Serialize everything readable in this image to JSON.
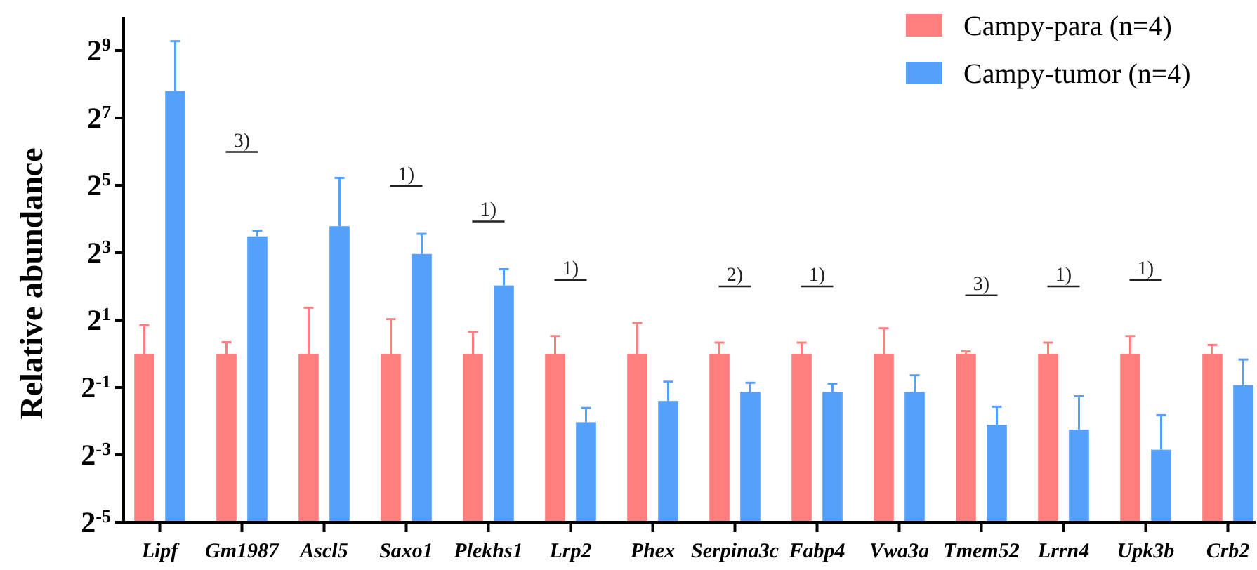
{
  "chart_data": {
    "type": "bar",
    "ylabel": "Relative abundance",
    "log": "y",
    "legend": "top right",
    "categories": [
      "Lipf",
      "Gm1987",
      "Ascl5",
      "Saxo1",
      "Plekhs1",
      "Lrp2",
      "Phex",
      "Serpina3c",
      "Fabp4",
      "Vwa3a",
      "Tmem52",
      "Lrrn4",
      "Upk3b",
      "Crb2"
    ],
    "ylim": [
      0.03125,
      1024
    ],
    "yticks": [
      {
        "value": 0.03125,
        "label": "2$^{-5}$"
      },
      {
        "value": 0.125,
        "label": "2$^{-3}$"
      },
      {
        "value": 0.5,
        "label": "2$^{-1}$"
      },
      {
        "value": 2,
        "label": "2$^{1}$"
      },
      {
        "value": 8,
        "label": "2$^{3}$"
      },
      {
        "value": 32,
        "label": "2$^{5}$"
      },
      {
        "value": 128,
        "label": "2$^{7}$"
      },
      {
        "value": 512,
        "label": "2$^{9}$"
      }
    ],
    "series": [
      {
        "name": "Campy-para (n=4)",
        "color": "#ff7f7f",
        "values": [
          1,
          1,
          1,
          1,
          1,
          1,
          1,
          1,
          1,
          1,
          1,
          1,
          1,
          1
        ],
        "errors": [
          [
            1,
            1.8
          ],
          [
            1,
            1.27
          ],
          [
            1,
            2.58
          ],
          [
            1,
            2.04
          ],
          [
            1,
            1.57
          ],
          [
            1,
            1.44
          ],
          [
            1,
            1.89
          ],
          [
            1,
            1.26
          ],
          [
            1,
            1.26
          ],
          [
            1,
            1.69
          ],
          [
            1,
            1.05
          ],
          [
            1,
            1.26
          ],
          [
            1,
            1.44
          ],
          [
            1,
            1.2
          ]
        ]
      },
      {
        "name": "Campy-tumor (n=4)",
        "color": "#55a0fb",
        "values": [
          223,
          11.2,
          13.8,
          7.8,
          4.08,
          0.245,
          0.379,
          0.457,
          0.457,
          0.457,
          0.232,
          0.21,
          0.139,
          0.525
        ],
        "errors": [
          [
            223,
            621
          ],
          [
            11.2,
            12.6
          ],
          [
            13.8,
            37.3
          ],
          [
            7.8,
            11.8
          ],
          [
            4.08,
            5.7
          ],
          [
            0.245,
            0.328
          ],
          [
            0.379,
            0.563
          ],
          [
            0.457,
            0.551
          ],
          [
            0.457,
            0.54
          ],
          [
            0.457,
            0.642
          ],
          [
            0.232,
            0.337
          ],
          [
            0.21,
            0.418
          ],
          [
            0.139,
            0.283
          ],
          [
            0.525,
            0.889
          ]
        ]
      }
    ],
    "annotations": [
      "3)",
      "1)",
      "1)",
      "1)",
      "2)",
      "1)",
      "3)",
      "1)",
      "1)"
    ]
  }
}
